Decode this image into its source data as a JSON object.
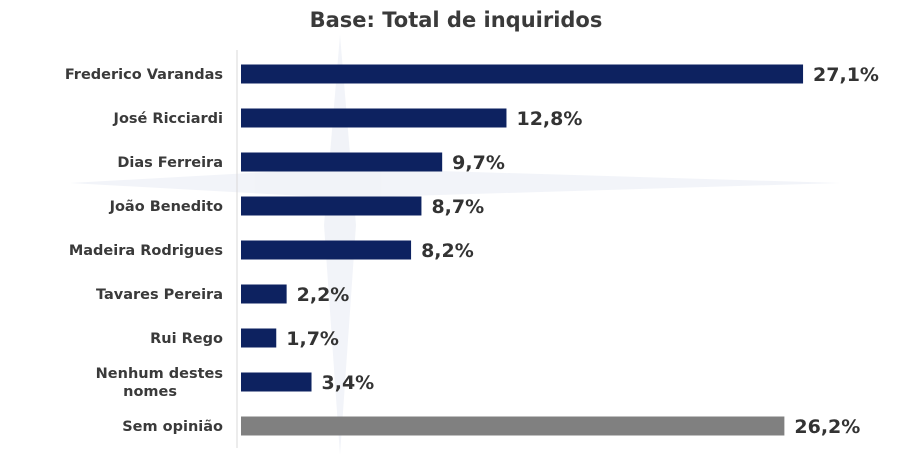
{
  "chart_data": {
    "type": "bar",
    "orientation": "horizontal",
    "title": "Base: Total de inquiridos",
    "categories": [
      "Frederico Varandas",
      "José Ricciardi",
      "Dias Ferreira",
      "João Benedito",
      "Madeira Rodrigues",
      "Tavares Pereira",
      "Rui Rego",
      "Nenhum destes nomes",
      "Sem opinião"
    ],
    "values": [
      27.1,
      12.8,
      9.7,
      8.7,
      8.2,
      2.2,
      1.7,
      3.4,
      26.2
    ],
    "value_labels": [
      "27,1%",
      "12,8%",
      "9,7%",
      "8,7%",
      "8,2%",
      "2,2%",
      "1,7%",
      "3,4%",
      "26,2%"
    ],
    "unit": "%",
    "bar_colors": [
      "#0d2260",
      "#0d2260",
      "#0d2260",
      "#0d2260",
      "#0d2260",
      "#0d2260",
      "#0d2260",
      "#0d2260",
      "#808080"
    ],
    "grid": false,
    "legend": "none"
  }
}
